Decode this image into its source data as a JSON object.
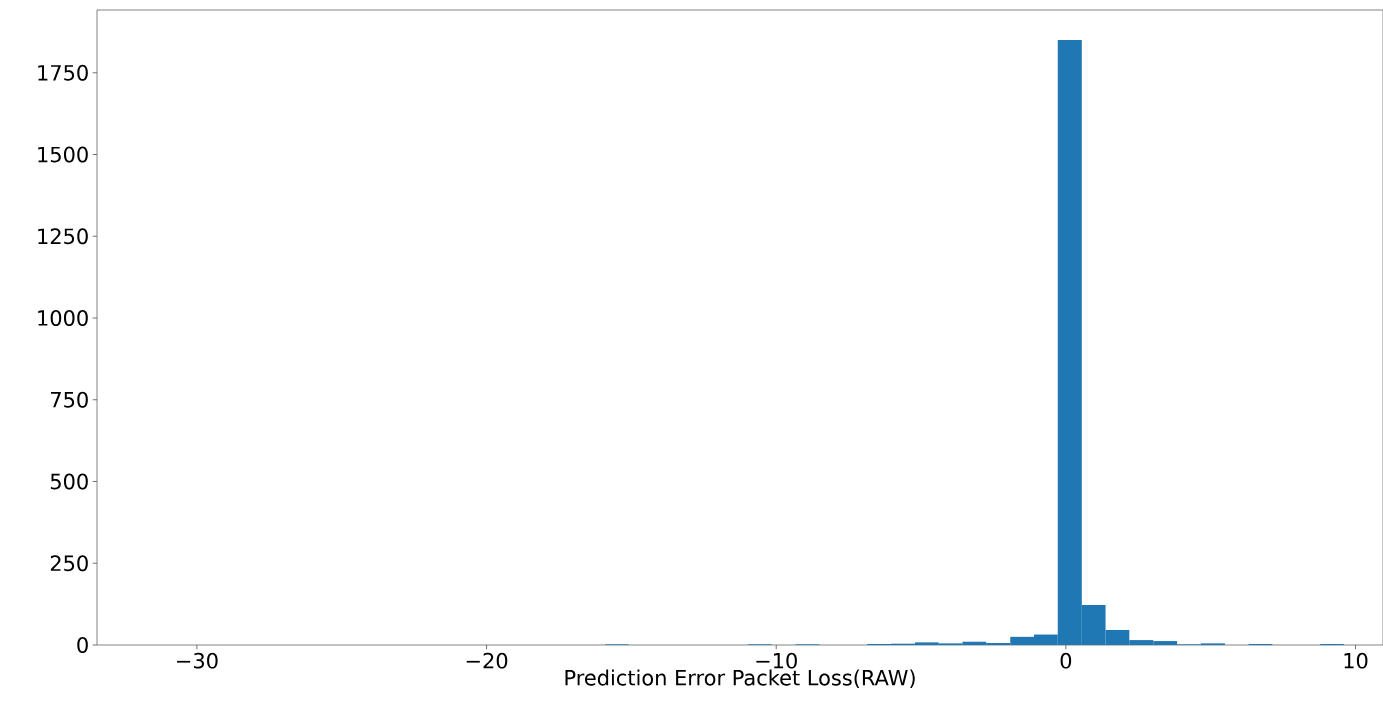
{
  "chart_data": {
    "type": "histogram",
    "xlabel": "Prediction Error Packet Loss(RAW)",
    "color": "#1f77b4",
    "bins": [
      -31.55,
      -30.73,
      -29.9,
      -29.08,
      -28.26,
      -27.44,
      -26.61,
      -25.79,
      -24.97,
      -24.14,
      -23.32,
      -22.5,
      -21.67,
      -20.85,
      -20.03,
      -19.21,
      -18.38,
      -17.56,
      -16.74,
      -15.91,
      -15.09,
      -14.27,
      -13.44,
      -12.62,
      -11.8,
      -10.98,
      -10.15,
      -9.33,
      -8.51,
      -7.68,
      -6.86,
      -6.04,
      -5.21,
      -4.39,
      -3.57,
      -2.75,
      -1.92,
      -1.1,
      -0.28,
      0.55,
      1.37,
      2.19,
      3.02,
      3.84,
      4.66,
      5.49,
      6.31,
      7.13,
      7.95,
      8.78,
      9.6
    ],
    "values": [
      null,
      0,
      0,
      0,
      0,
      0,
      0,
      0,
      0,
      0,
      0,
      0,
      0,
      0,
      0,
      0,
      0,
      0,
      0,
      2,
      0,
      0,
      0,
      0,
      0,
      2,
      0,
      2,
      0,
      0,
      3,
      4,
      8,
      5,
      10,
      6,
      25,
      32,
      1850,
      122,
      46,
      15,
      12,
      2,
      5,
      0,
      3,
      0,
      0,
      3
    ],
    "xlim": [
      -33.45,
      10.95
    ],
    "ylim": [
      0,
      1942
    ],
    "xticks": [
      {
        "value": -30,
        "label": "−30"
      },
      {
        "value": -20,
        "label": "−20"
      },
      {
        "value": -10,
        "label": "−10"
      },
      0,
      10
    ],
    "yticks": [
      0,
      250,
      500,
      750,
      1000,
      1250,
      1500,
      1750
    ],
    "grid": false
  }
}
